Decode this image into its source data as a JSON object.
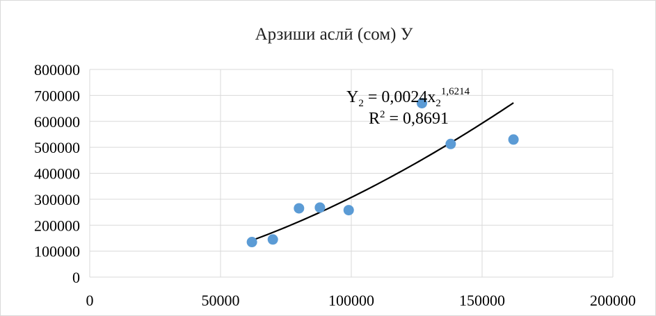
{
  "chart_data": {
    "type": "scatter",
    "title": "Арзиши аслӣ (сом) У",
    "xlabel": "",
    "ylabel": "",
    "xlim": [
      0,
      200000
    ],
    "ylim": [
      0,
      800000
    ],
    "x_ticks": [
      "0",
      "50000",
      "100000",
      "150000",
      "200000"
    ],
    "y_ticks": [
      "0",
      "100000",
      "200000",
      "300000",
      "400000",
      "500000",
      "600000",
      "700000",
      "800000"
    ],
    "grid": "vertical and horizontal",
    "legend": "none",
    "series": [
      {
        "points": [
          {
            "x": 62000,
            "y": 135000
          },
          {
            "x": 70000,
            "y": 145000
          },
          {
            "x": 80000,
            "y": 265000
          },
          {
            "x": 88000,
            "y": 268000
          },
          {
            "x": 99000,
            "y": 258000
          },
          {
            "x": 127000,
            "y": 670000
          },
          {
            "x": 138000,
            "y": 513000
          },
          {
            "x": 162000,
            "y": 530000
          }
        ]
      }
    ],
    "trendline": {
      "type": "power",
      "coefficient": 0.0024,
      "exponent": 1.6214,
      "x_range": [
        62000,
        162000
      ],
      "equation": {
        "y_main": "Y",
        "y_sub": "2",
        "middle": " = 0,0024x",
        "x_sub": "2",
        "x_sup": "1,6214"
      },
      "r2": {
        "r": "R",
        "sup": "2",
        "rest": " = 0,8691"
      }
    },
    "colors": {
      "points": "#5b9bd5",
      "trendline": "#000000",
      "grid": "#d9d9d9"
    }
  }
}
